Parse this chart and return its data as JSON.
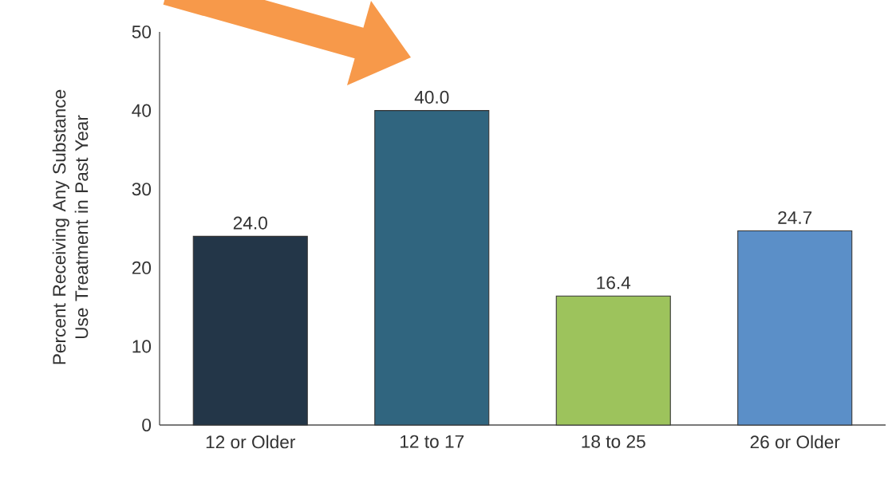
{
  "chart_data": {
    "type": "bar",
    "ylabel": "Percent Receiving Any Substance Use Treatment in Past Year",
    "categories": [
      "12 or Older",
      "12 to 17",
      "18 to 25",
      "26 or Older"
    ],
    "values": [
      24.0,
      40.0,
      16.4,
      24.7
    ],
    "value_labels": [
      "24.0",
      "40.0",
      "16.4",
      "24.7"
    ],
    "colors": [
      "#233648",
      "#30657f",
      "#9dc35c",
      "#5b8fc8"
    ],
    "ylim": [
      0,
      50
    ],
    "yticks": [
      0,
      10,
      20,
      30,
      40,
      50
    ]
  }
}
